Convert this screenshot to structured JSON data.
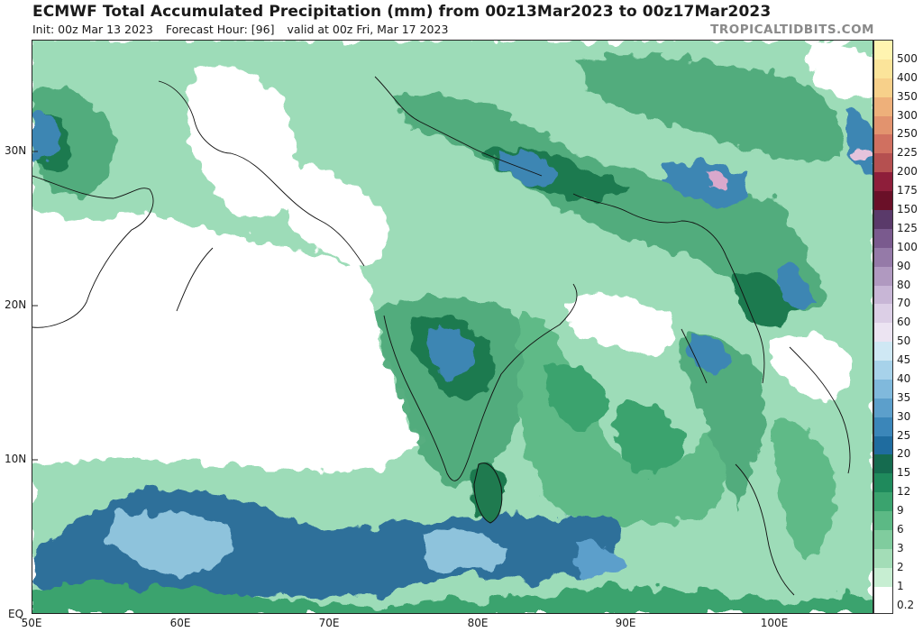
{
  "header": {
    "title": "ECMWF Total Accumulated Precipitation (mm) from 00z13Mar2023 to 00z17Mar2023",
    "init": "Init: 00z Mar 13 2023",
    "forecast_hour": "Forecast Hour: [96]",
    "valid": "valid at 00z Fri, Mar 17 2023",
    "brand": "TROPICALTIDBITS.COM"
  },
  "map": {
    "lat_labels": [
      "30N",
      "20N",
      "10N",
      "EQ"
    ],
    "lon_labels": [
      "50E",
      "60E",
      "70E",
      "80E",
      "90E",
      "100E"
    ],
    "colors": {
      "ocean_heavy": "#2f6f9a",
      "ocean_core": "#8ec3dc",
      "green_light": "#9ddcb8",
      "green_mid": "#4faa7a",
      "green_dark": "#1f7a4f",
      "blue_mid": "#3d86b3"
    }
  },
  "colorbar": {
    "levels": [
      "500",
      "400",
      "350",
      "300",
      "250",
      "225",
      "200",
      "175",
      "150",
      "125",
      "100",
      "90",
      "80",
      "70",
      "60",
      "50",
      "45",
      "40",
      "35",
      "30",
      "25",
      "20",
      "15",
      "12",
      "9",
      "6",
      "3",
      "2",
      "1",
      "0.2"
    ],
    "colors": [
      "#fff4b0",
      "#fbe49a",
      "#f7d08a",
      "#eeb07a",
      "#e2936e",
      "#d07060",
      "#b55050",
      "#8e1e3a",
      "#6a1028",
      "#5a3a6a",
      "#7a5a8e",
      "#957aa8",
      "#b099c0",
      "#c8b6d6",
      "#dccfe6",
      "#ece4f2",
      "#cfe8f4",
      "#a7d2ea",
      "#80b9dc",
      "#5c9fcb",
      "#3b86b9",
      "#1f6c9f",
      "#156b4f",
      "#1f8a5c",
      "#3aa36e",
      "#5cb985",
      "#80cc9e",
      "#a3ddb7",
      "#c7eed2",
      "#ffffff"
    ]
  }
}
